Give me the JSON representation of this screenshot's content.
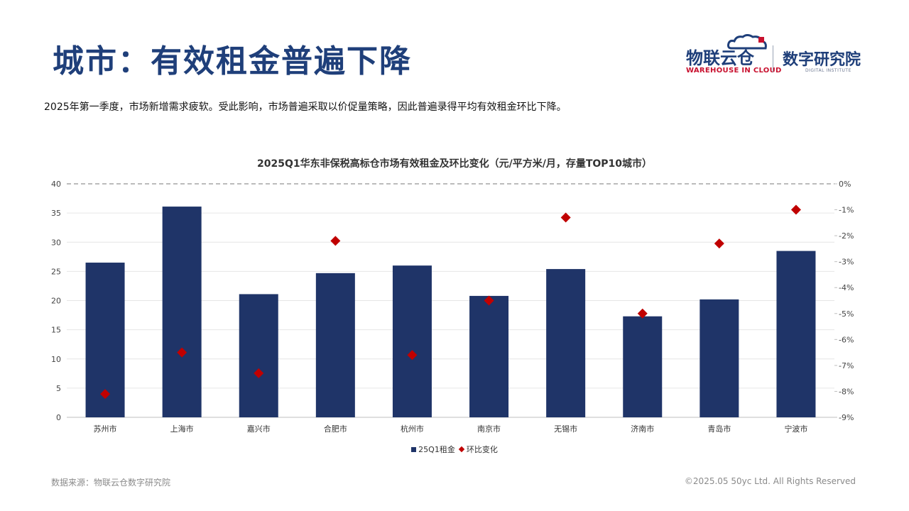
{
  "header": {
    "title": "城市：有效租金普遍下降",
    "logo_main": "物联云仓",
    "logo_sub": "WAREHOUSE IN CLOUD",
    "logo_institute": "数字研究院",
    "logo_institute_sub": "DIGITAL INSTITUTE"
  },
  "subtitle": "2025年第一季度，市场新增需求疲软。受此影响，市场普遍采取以价促量策略，因此普遍录得平均有效租金环比下降。",
  "footer": {
    "source": "数据来源：物联云仓数字研究院",
    "copyright": "©2025.05 50yc Ltd. All Rights Reserved"
  },
  "colors": {
    "bar": "#1f3468",
    "marker": "#c00000",
    "title": "#1f3f7a"
  },
  "chart_data": {
    "type": "bar",
    "title": "2025Q1华东非保税高标仓市场有效租金及环比变化（元/平方米/月，存量TOP10城市）",
    "categories": [
      "苏州市",
      "上海市",
      "嘉兴市",
      "合肥市",
      "杭州市",
      "南京市",
      "无锡市",
      "济南市",
      "青岛市",
      "宁波市"
    ],
    "series": [
      {
        "name": "25Q1租金",
        "type": "bar",
        "axis": "left",
        "values": [
          26.5,
          36.1,
          21.1,
          24.7,
          26.0,
          20.8,
          25.4,
          17.3,
          20.2,
          28.5
        ]
      },
      {
        "name": "环比变化",
        "type": "scatter",
        "axis": "right",
        "values": [
          -8.1,
          -6.5,
          -7.3,
          -2.2,
          -6.6,
          -4.5,
          -1.3,
          -5.0,
          -2.3,
          -1.0
        ]
      }
    ],
    "y_left": {
      "min": 0,
      "max": 40,
      "step": 5,
      "ticks": [
        "0",
        "5",
        "10",
        "15",
        "20",
        "25",
        "30",
        "35",
        "40"
      ]
    },
    "y_right": {
      "min": -9,
      "max": 0,
      "step": 1,
      "ticks": [
        "-9%",
        "-8%",
        "-7%",
        "-6%",
        "-5%",
        "-4%",
        "-3%",
        "-2%",
        "-1%",
        "0%"
      ]
    },
    "grid": true,
    "legend_position": "bottom"
  }
}
